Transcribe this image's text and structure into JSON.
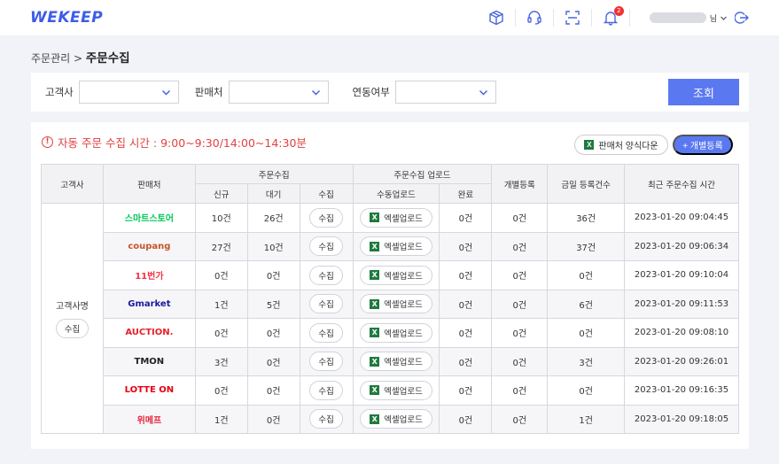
{
  "brand": "WEKEEP",
  "header": {
    "notification_count": "2",
    "user_suffix": "님"
  },
  "breadcrumb": {
    "parent": "주문관리 >",
    "current": "주문수집"
  },
  "filters": {
    "customer_label": "고객사",
    "seller_label": "판매처",
    "link_label": "연동여부",
    "search_button": "조회"
  },
  "panel": {
    "notice": "자동 주문 수집 시간 : 9:00~9:30/14:00~14:30분",
    "seller_form_download": "판매처 양식다운",
    "add_individual": "+ 개별등록"
  },
  "table": {
    "headers": {
      "customer": "고객사",
      "seller": "판매처",
      "collect_group": "주문수집",
      "upload_group": "주문수집 업로드",
      "individual": "개별등록",
      "today_count": "금일 등록건수",
      "recent_time": "최근 주문수집 시간",
      "new": "신규",
      "waiting": "대기",
      "collect": "수집",
      "manual_upload": "수동업로드",
      "done": "완료"
    },
    "customer_name": "고객사명",
    "customer_collect_button": "수집",
    "collect_button": "수집",
    "excel_upload_button": "엑셀업로드",
    "rows": [
      {
        "seller": "스마트스토어",
        "seller_color": "#03c75a",
        "new": "10건",
        "waiting": "26건",
        "done": "0건",
        "individual": "0건",
        "today": "36건",
        "time": "2023-01-20 09:04:45"
      },
      {
        "seller": "coupang",
        "seller_color": "#c4562b",
        "new": "27건",
        "waiting": "10건",
        "done": "0건",
        "individual": "0건",
        "today": "37건",
        "time": "2023-01-20 09:06:34"
      },
      {
        "seller": "11번가",
        "seller_color": "#f43142",
        "new": "0건",
        "waiting": "0건",
        "done": "0건",
        "individual": "0건",
        "today": "0건",
        "time": "2023-01-20 09:10:04"
      },
      {
        "seller": "Gmarket",
        "seller_color": "#1a1a9c",
        "new": "1건",
        "waiting": "5건",
        "done": "0건",
        "individual": "0건",
        "today": "6건",
        "time": "2023-01-20 09:11:53"
      },
      {
        "seller": "AUCTION.",
        "seller_color": "#e8202a",
        "new": "0건",
        "waiting": "0건",
        "done": "0건",
        "individual": "0건",
        "today": "0건",
        "time": "2023-01-20 09:08:10"
      },
      {
        "seller": "TMON",
        "seller_color": "#222222",
        "new": "3건",
        "waiting": "0건",
        "done": "0건",
        "individual": "0건",
        "today": "3건",
        "time": "2023-01-20 09:26:01"
      },
      {
        "seller": "LOTTE ON",
        "seller_color": "#e60012",
        "new": "0건",
        "waiting": "0건",
        "done": "0건",
        "individual": "0건",
        "today": "0건",
        "time": "2023-01-20 09:16:35"
      },
      {
        "seller": "위메프",
        "seller_color": "#e8243b",
        "new": "1건",
        "waiting": "0건",
        "done": "0건",
        "individual": "0건",
        "today": "1건",
        "time": "2023-01-20 09:18:05"
      }
    ]
  },
  "colors": {
    "accent": "#5a78f0",
    "notice": "#e24040",
    "excel": "#1f7a3f"
  }
}
